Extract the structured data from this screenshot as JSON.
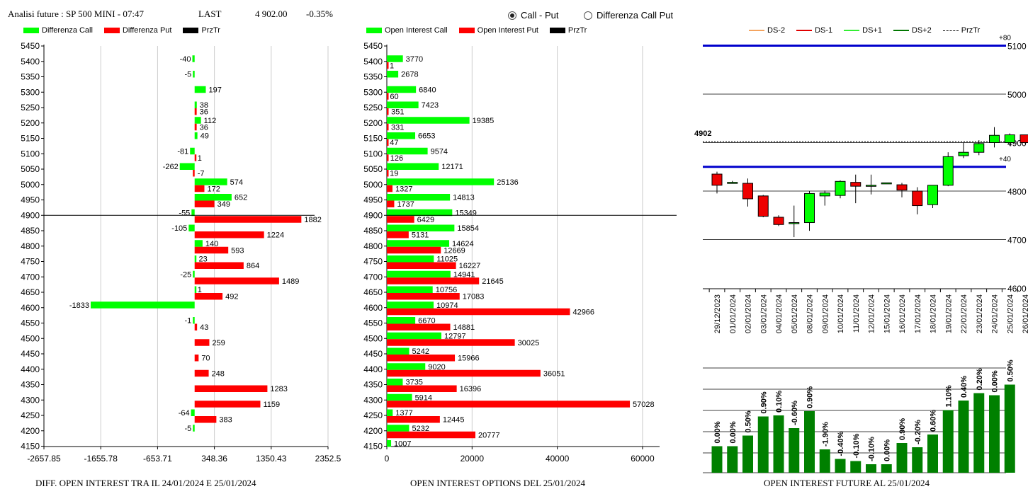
{
  "header": {
    "title": "Analisi future : SP 500 MINI - 07:47",
    "last_label": "LAST",
    "last_value": "4 902.00",
    "last_change": "-0.35%"
  },
  "mode_selector": {
    "options": [
      "Call - Put",
      "Differenza Call Put"
    ],
    "selected": "Call - Put"
  },
  "colors": {
    "call": "#00ff00",
    "put": "#ff0000",
    "prztr": "#000000",
    "future_bar": "#008000",
    "level_line": "#0000cc",
    "ds_minus2": "#f4a460",
    "ds_minus1": "#e00000",
    "ds_plus1": "#33ee33",
    "ds_plus2": "#007700"
  },
  "panel1": {
    "legend": [
      "Differenza Call",
      "Differenza Put",
      "PrzTr"
    ],
    "caption": "DIFF. OPEN INTEREST TRA IL 24/01/2024 E 25/01/2024"
  },
  "panel2": {
    "legend": [
      "Open Interest Call",
      "Open Interest Put",
      "PrzTr"
    ],
    "caption": "OPEN INTEREST OPTIONS DEL 25/01/2024"
  },
  "panel3": {
    "legend": [
      "DS-2",
      "DS-1",
      "DS+1",
      "DS+2",
      "PrzTr"
    ],
    "caption": "OPEN INTEREST FUTURE AL 25/01/2024"
  },
  "chart_data": [
    {
      "type": "bar",
      "orientation": "horizontal",
      "strikes": [
        5450,
        5400,
        5350,
        5300,
        5250,
        5200,
        5150,
        5100,
        5050,
        5000,
        4950,
        4900,
        4850,
        4800,
        4750,
        4700,
        4650,
        4600,
        4550,
        4500,
        4450,
        4400,
        4350,
        4300,
        4250,
        4200,
        4150
      ],
      "series": [
        {
          "name": "Differenza Call",
          "values": [
            null,
            -40,
            -5,
            197,
            38,
            112,
            49,
            -81,
            -262,
            574,
            652,
            -55,
            -105,
            140,
            23,
            -25,
            1,
            -1833,
            -1,
            null,
            null,
            null,
            null,
            null,
            -64,
            -5,
            null
          ]
        },
        {
          "name": "Differenza Put",
          "values": [
            null,
            null,
            null,
            null,
            36,
            36,
            null,
            1,
            -7,
            172,
            349,
            1882,
            1224,
            593,
            864,
            1489,
            492,
            null,
            43,
            259,
            70,
            248,
            1283,
            1159,
            383,
            null,
            null
          ]
        }
      ],
      "x_ticks": [
        "-2657.85",
        "-1655.78",
        "-653.71",
        "348.36",
        "1350.43",
        "2352.5"
      ],
      "xlim": [
        -2657.85,
        2352.5
      ],
      "prztr": 4902
    },
    {
      "type": "bar",
      "orientation": "horizontal",
      "strikes": [
        5450,
        5400,
        5350,
        5300,
        5250,
        5200,
        5150,
        5100,
        5050,
        5000,
        4950,
        4900,
        4850,
        4800,
        4750,
        4700,
        4650,
        4600,
        4550,
        4500,
        4450,
        4400,
        4350,
        4300,
        4250,
        4200,
        4150
      ],
      "series": [
        {
          "name": "Open Interest Call",
          "values": [
            null,
            3770,
            2678,
            6840,
            7423,
            19385,
            6653,
            9574,
            12171,
            25136,
            14813,
            15349,
            15854,
            14624,
            11025,
            14941,
            10756,
            10974,
            6670,
            12797,
            5242,
            9020,
            3735,
            5914,
            1377,
            5232,
            1007
          ]
        },
        {
          "name": "Open Interest Put",
          "values": [
            null,
            1,
            null,
            60,
            351,
            331,
            47,
            126,
            19,
            1327,
            1737,
            6429,
            5131,
            12669,
            16227,
            21645,
            17083,
            42966,
            14881,
            30025,
            15966,
            36051,
            16396,
            57028,
            12445,
            20777,
            null
          ]
        }
      ],
      "x_ticks": [
        "0",
        "20000",
        "40000",
        "60000"
      ],
      "xlim": [
        0,
        64000
      ],
      "prztr": 4902
    },
    {
      "type": "candlestick",
      "dates": [
        "29/12/2023",
        "01/01/2024",
        "02/01/2024",
        "03/01/2024",
        "04/01/2024",
        "05/01/2024",
        "08/01/2024",
        "09/01/2024",
        "10/01/2024",
        "11/01/2024",
        "12/01/2024",
        "15/01/2024",
        "16/01/2024",
        "17/01/2024",
        "18/01/2024",
        "19/01/2024",
        "22/01/2024",
        "23/01/2024",
        "24/01/2024",
        "25/01/2024",
        "26/01/2024"
      ],
      "ohlc": [
        [
          4835,
          4840,
          4795,
          4812
        ],
        [
          4818,
          4821,
          4818,
          4818
        ],
        [
          4816,
          4826,
          4768,
          4784
        ],
        [
          4790,
          4792,
          4746,
          4748
        ],
        [
          4746,
          4750,
          4728,
          4731
        ],
        [
          4733,
          4770,
          4705,
          4735
        ],
        [
          4735,
          4800,
          4718,
          4795
        ],
        [
          4790,
          4801,
          4770,
          4796
        ],
        [
          4791,
          4822,
          4785,
          4820
        ],
        [
          4818,
          4834,
          4775,
          4810
        ],
        [
          4812,
          4834,
          4793,
          4812
        ],
        [
          4817,
          4817,
          4817,
          4817
        ],
        [
          4813,
          4817,
          4787,
          4802
        ],
        [
          4800,
          4808,
          4752,
          4770
        ],
        [
          4772,
          4812,
          4765,
          4812
        ],
        [
          4812,
          4880,
          4810,
          4871
        ],
        [
          4873,
          4900,
          4868,
          4880
        ],
        [
          4880,
          4905,
          4874,
          4898
        ],
        [
          4900,
          4932,
          4890,
          4915
        ],
        [
          4900,
          4919,
          4893,
          4916
        ],
        [
          4916,
          4916,
          4898,
          4900
        ]
      ],
      "y_ticks": [
        "4600",
        "4700",
        "4800",
        "4900",
        "5000",
        "5100"
      ],
      "ylim": [
        4600,
        5100
      ],
      "levels": [
        {
          "label": "+80",
          "value": 5100
        },
        {
          "label": "+40",
          "value": 4850
        }
      ],
      "prztr": 4902,
      "prztr_label": "4902"
    },
    {
      "type": "bar",
      "categories": [
        "29/12/2023",
        "01/01/2024",
        "02/01/2024",
        "03/01/2024",
        "04/01/2024",
        "05/01/2024",
        "08/01/2024",
        "09/01/2024",
        "10/01/2024",
        "11/01/2024",
        "12/01/2024",
        "15/01/2024",
        "16/01/2024",
        "17/01/2024",
        "18/01/2024",
        "19/01/2024",
        "22/01/2024",
        "23/01/2024",
        "24/01/2024",
        "25/01/2024",
        "26/01/2024"
      ],
      "values": [
        25,
        25,
        35,
        53,
        54,
        42,
        58,
        22,
        13,
        11,
        8,
        8,
        28,
        24,
        36,
        59,
        68,
        75,
        73,
        83,
        0
      ],
      "labels": [
        "0.00%",
        "0.00%",
        "0.50%",
        "0.90%",
        "0.10%",
        "-0.60%",
        "0.90%",
        "-1.90%",
        "-0.40%",
        "-0.10%",
        "-0.10%",
        "0.00%",
        "0.90%",
        "-0.20%",
        "0.60%",
        "1.10%",
        "0.40%",
        "0.20%",
        "0.00%",
        "0.50%",
        ""
      ],
      "ylim": [
        0,
        100
      ]
    }
  ]
}
